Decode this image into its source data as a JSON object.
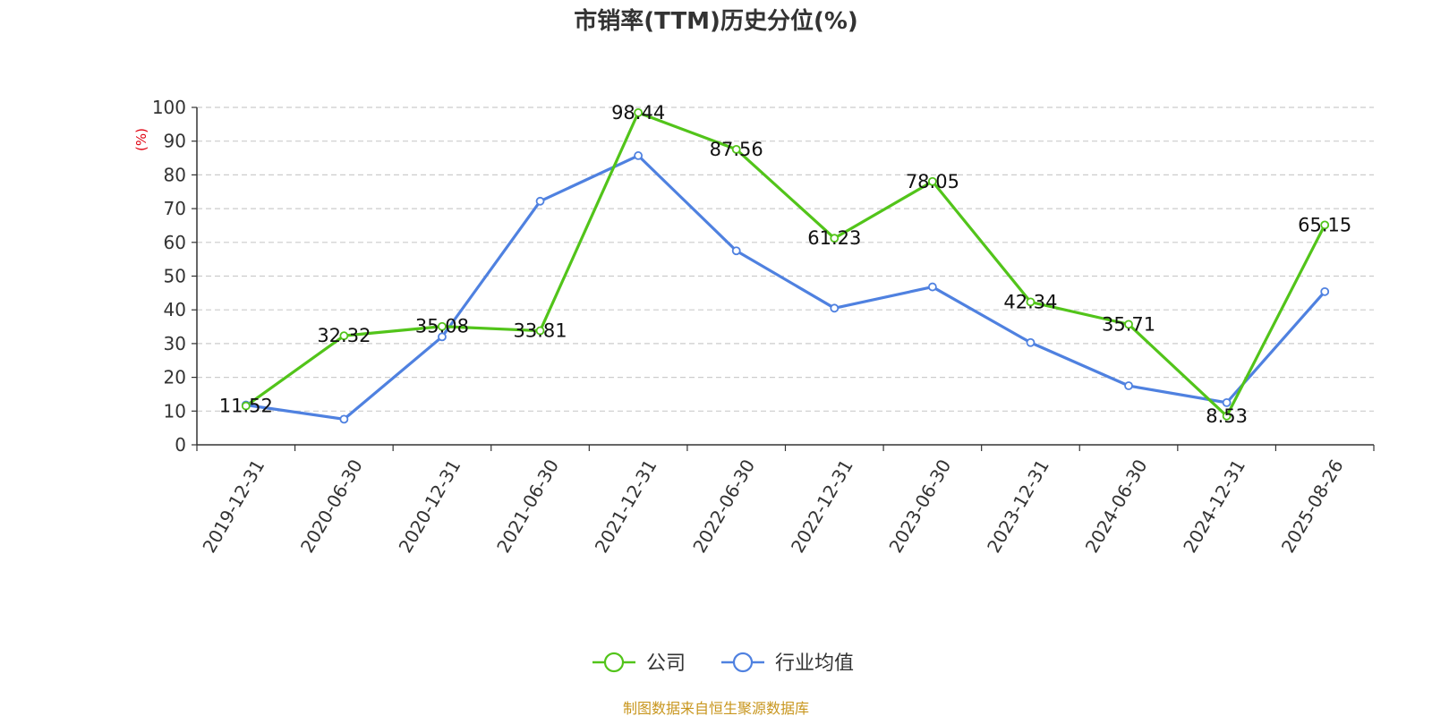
{
  "chart_data": {
    "type": "line",
    "title": "市销率(TTM)历史分位(%)",
    "ylabel": "(%)",
    "xlabel": "",
    "ylim": [
      0,
      100
    ],
    "yticks": [
      0,
      10,
      20,
      30,
      40,
      50,
      60,
      70,
      80,
      90,
      100
    ],
    "grid": true,
    "legend_position": "bottom",
    "categories": [
      "2019-12-31",
      "2020-06-30",
      "2020-12-31",
      "2021-06-30",
      "2021-12-31",
      "2022-06-30",
      "2022-12-31",
      "2023-06-30",
      "2023-12-31",
      "2024-06-30",
      "2024-12-31",
      "2025-08-26"
    ],
    "series": [
      {
        "name": "公司",
        "color": "#52c41a",
        "values": [
          11.52,
          32.32,
          35.08,
          33.81,
          98.44,
          87.56,
          61.23,
          78.05,
          42.34,
          35.71,
          8.53,
          65.15
        ],
        "labels": [
          "11.52",
          "32.32",
          "35.08",
          "33.81",
          "98.44",
          "87.56",
          "61.23",
          "78.05",
          "42.34",
          "35.71",
          "8.53",
          "65.15"
        ]
      },
      {
        "name": "行业均值",
        "color": "#4f81e0",
        "values": [
          11.8,
          7.6,
          32.0,
          72.2,
          85.7,
          57.5,
          40.5,
          46.8,
          30.3,
          17.5,
          12.5,
          45.4
        ]
      }
    ],
    "source": "制图数据来自恒生聚源数据库",
    "source_color": "#c8961e",
    "ylabel_color": "#e0000f"
  }
}
